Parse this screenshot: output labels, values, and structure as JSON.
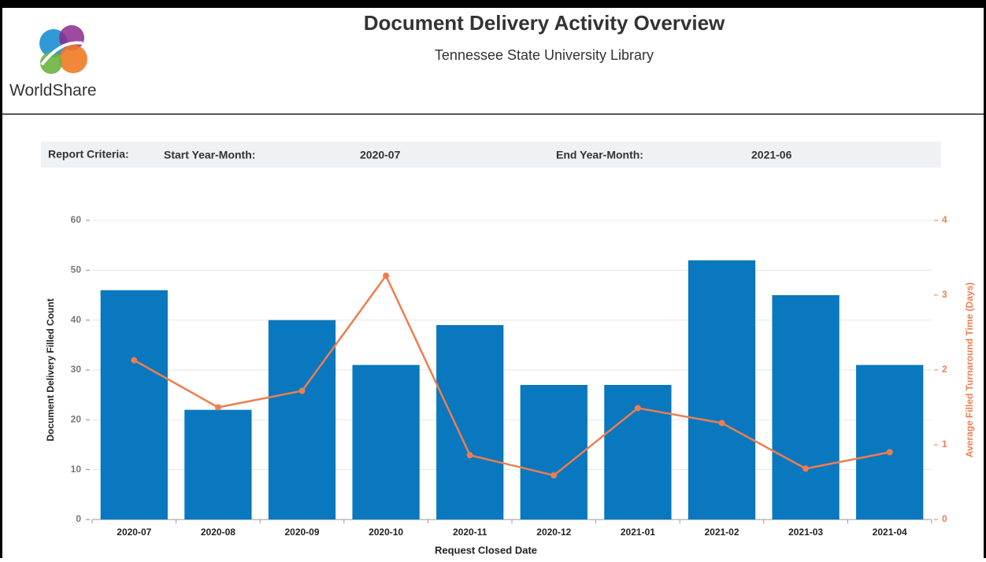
{
  "header": {
    "logo_text": "WorldShare",
    "title": "Document Delivery Activity Overview",
    "subtitle": "Tennessee State University Library"
  },
  "criteria": {
    "label": "Report Criteria:",
    "start_label": "Start Year-Month:",
    "start_value": "2020-07",
    "end_label": "End Year-Month:",
    "end_value": "2021-06"
  },
  "chart_data": {
    "type": "bar",
    "xlabel": "Request Closed Date",
    "ylabel": "Document Delivery Filled Count",
    "y2label": "Average Filled Turnaround Time (Days)",
    "categories": [
      "2020-07",
      "2020-08",
      "2020-09",
      "2020-10",
      "2020-11",
      "2020-12",
      "2021-01",
      "2021-02",
      "2021-03",
      "2021-04"
    ],
    "series": [
      {
        "type": "bar",
        "color": "#0a78be",
        "values": [
          46,
          22,
          40,
          31,
          39,
          27,
          27,
          52,
          45,
          31
        ]
      },
      {
        "type": "line",
        "axis": "y2",
        "color": "#ef7d4f",
        "values": [
          2.13,
          1.5,
          1.72,
          3.26,
          0.86,
          0.59,
          1.49,
          1.29,
          0.68,
          0.9
        ]
      }
    ],
    "ylim": [
      0,
      60
    ],
    "yticks": [
      0,
      10,
      20,
      30,
      40,
      50,
      60
    ],
    "y2lim": [
      0,
      4
    ],
    "y2ticks": [
      0,
      1,
      2,
      3,
      4
    ],
    "grid": true
  }
}
